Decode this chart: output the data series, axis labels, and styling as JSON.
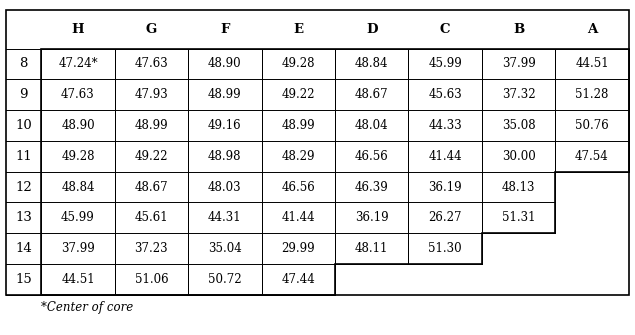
{
  "col_headers": [
    "H",
    "G",
    "F",
    "E",
    "D",
    "C",
    "B",
    "A"
  ],
  "row_headers": [
    "8",
    "9",
    "10",
    "11",
    "12",
    "13",
    "14",
    "15"
  ],
  "table_data": [
    [
      "47.24*",
      "47.63",
      "48.90",
      "49.28",
      "48.84",
      "45.99",
      "37.99",
      "44.51"
    ],
    [
      "47.63",
      "47.93",
      "48.99",
      "49.22",
      "48.67",
      "45.63",
      "37.32",
      "51.28"
    ],
    [
      "48.90",
      "48.99",
      "49.16",
      "48.99",
      "48.04",
      "44.33",
      "35.08",
      "50.76"
    ],
    [
      "49.28",
      "49.22",
      "48.98",
      "48.29",
      "46.56",
      "41.44",
      "30.00",
      "47.54"
    ],
    [
      "48.84",
      "48.67",
      "48.03",
      "46.56",
      "46.39",
      "36.19",
      "48.13",
      ""
    ],
    [
      "45.99",
      "45.61",
      "44.31",
      "41.44",
      "36.19",
      "26.27",
      "51.31",
      ""
    ],
    [
      "37.99",
      "37.23",
      "35.04",
      "29.99",
      "48.11",
      "51.30",
      "",
      ""
    ],
    [
      "44.51",
      "51.06",
      "50.72",
      "47.44",
      "",
      "",
      "",
      ""
    ]
  ],
  "filled_cols": [
    8,
    8,
    8,
    8,
    7,
    7,
    6,
    4
  ],
  "footnote": "*Center of core",
  "bg_color": "#ffffff",
  "border_color": "#000000",
  "text_color": "#000000",
  "cell_font_size": 8.5,
  "header_font_size": 9.5,
  "footnote_font_size": 8.5,
  "fig_width": 6.35,
  "fig_height": 3.35,
  "dpi": 100
}
